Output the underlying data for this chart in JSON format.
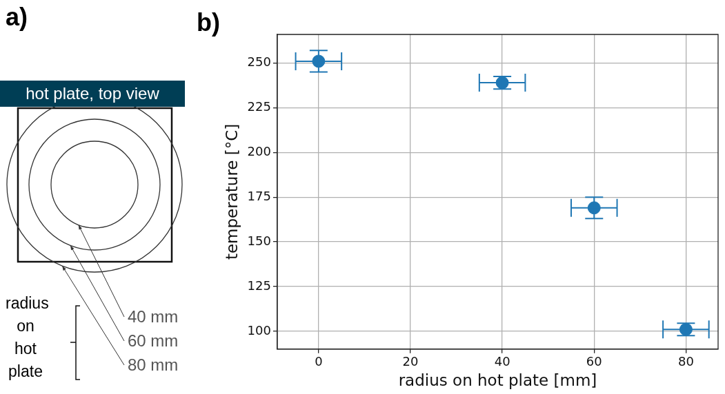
{
  "chart_data": {
    "type": "scatter",
    "x": [
      0,
      40,
      60,
      80
    ],
    "series": [
      {
        "color": "#1f77b4",
        "values": [
          251,
          239,
          169,
          101
        ],
        "errors": [
          6,
          3.5,
          6,
          3.5
        ],
        "xerrors": [
          5,
          5,
          5,
          5
        ]
      }
    ],
    "xlabel": "radius on hot plate [mm]",
    "ylabel": "temperature [°C]",
    "xlim": [
      -9,
      87
    ],
    "xticks": [
      0,
      20,
      40,
      60,
      80
    ],
    "ylim": [
      90,
      266
    ],
    "yticks": [
      100,
      125,
      150,
      175,
      200,
      225,
      250
    ],
    "grid": true,
    "legend": false,
    "marker": "circle",
    "annotations": [
      "a)",
      "b)",
      "hot plate, top view",
      "radius on hot plate",
      "40 mm",
      "60 mm",
      "80 mm"
    ]
  }
}
